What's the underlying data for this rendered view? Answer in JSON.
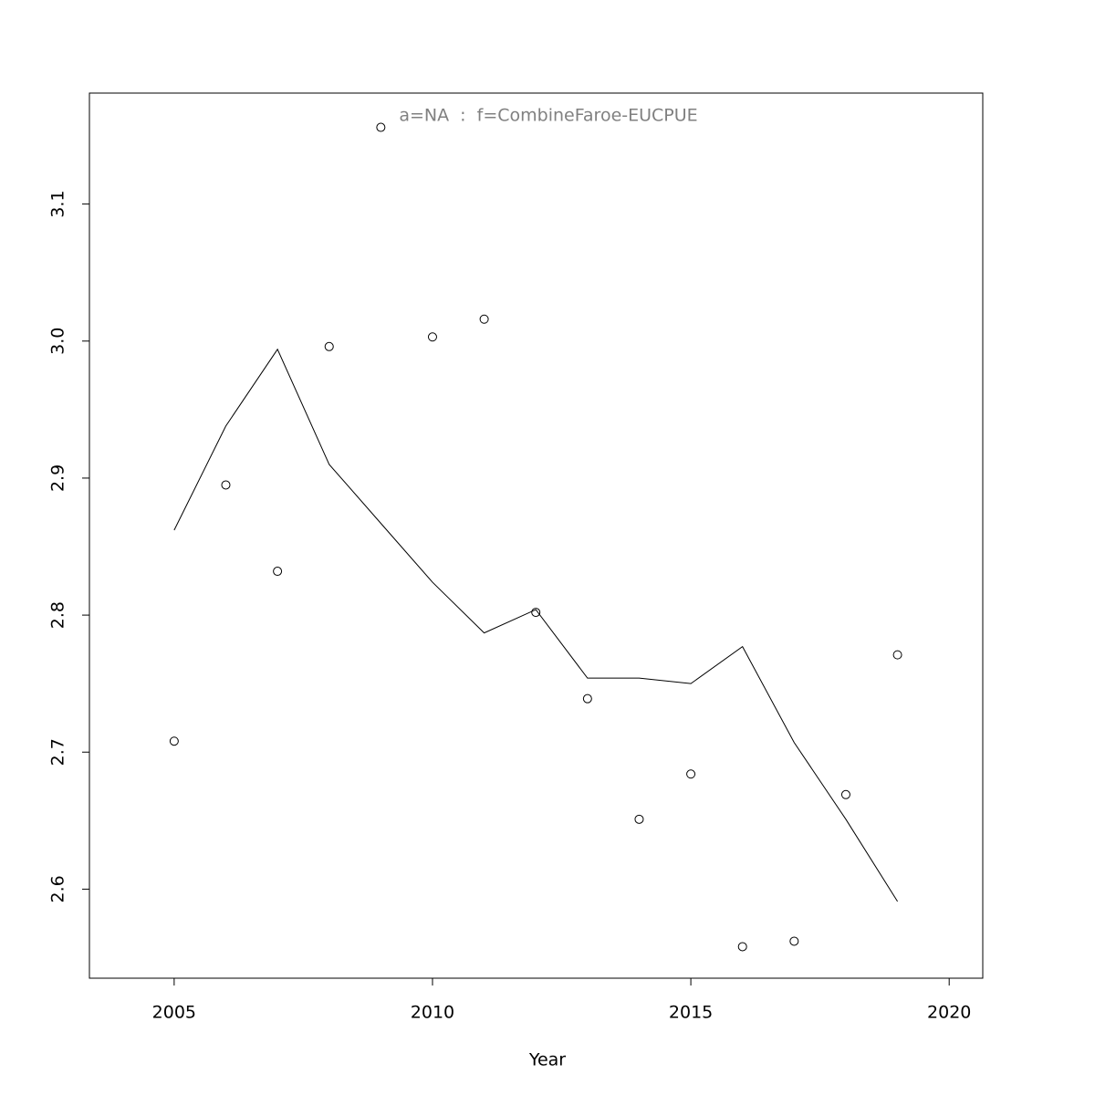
{
  "chart_data": {
    "type": "line",
    "annotation": "a=NA  :  f=CombineFaroe-EUCPUE",
    "x_label": "Year",
    "x": [
      2005,
      2006,
      2007,
      2008,
      2009,
      2010,
      2011,
      2012,
      2013,
      2014,
      2015,
      2016,
      2017,
      2018,
      2019
    ],
    "series": [
      {
        "type": "scatter",
        "color": "#000000",
        "values": [
          2.708,
          2.895,
          2.832,
          2.996,
          3.156,
          3.003,
          3.016,
          2.802,
          2.739,
          2.651,
          2.684,
          2.558,
          2.562,
          2.669,
          2.771
        ]
      },
      {
        "type": "line",
        "color": "#000000",
        "values": [
          2.862,
          2.938,
          2.994,
          2.91,
          2.867,
          2.824,
          2.787,
          2.804,
          2.754,
          2.754,
          2.75,
          2.777,
          2.707,
          2.651,
          2.591
        ]
      }
    ],
    "xlim": [
      2003.36,
      2020.65
    ],
    "ylim": [
      2.535,
      3.181
    ],
    "xticks": [
      2005,
      2010,
      2015,
      2020
    ],
    "yticks": [
      {
        "value": 2.6,
        "label": "2.6"
      },
      {
        "value": 2.7,
        "label": "2.7"
      },
      {
        "value": 2.8,
        "label": "2.8"
      },
      {
        "value": 2.9,
        "label": "2.9"
      },
      {
        "value": 3.0,
        "label": "3.0"
      },
      {
        "value": 3.1,
        "label": "3.1"
      }
    ]
  }
}
